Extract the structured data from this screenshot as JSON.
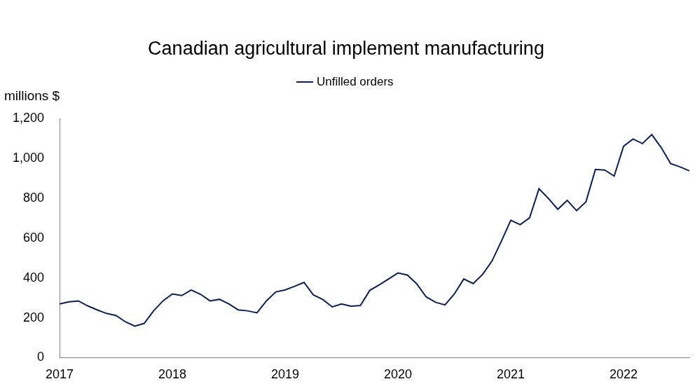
{
  "chart_data": {
    "type": "line",
    "title": "Canadian agricultural implement manufacturing",
    "ylabel": "millions $",
    "categories": [
      "2017",
      null,
      null,
      null,
      null,
      null,
      null,
      null,
      null,
      null,
      null,
      null,
      "2018",
      null,
      null,
      null,
      null,
      null,
      null,
      null,
      null,
      null,
      null,
      null,
      "2019",
      null,
      null,
      null,
      null,
      null,
      null,
      null,
      null,
      null,
      null,
      null,
      "2020",
      null,
      null,
      null,
      null,
      null,
      null,
      null,
      null,
      null,
      null,
      null,
      "2021",
      null,
      null,
      null,
      null,
      null,
      null,
      null,
      null,
      null,
      null,
      null,
      "2022",
      null,
      null,
      null,
      null,
      null,
      null,
      null
    ],
    "series": [
      {
        "name": "Unfilled orders",
        "color": "#0d1f55",
        "values": [
          270,
          280,
          285,
          260,
          240,
          222,
          212,
          180,
          158,
          172,
          235,
          285,
          320,
          312,
          340,
          318,
          285,
          293,
          270,
          240,
          235,
          225,
          285,
          330,
          340,
          358,
          378,
          315,
          292,
          255,
          270,
          258,
          262,
          338,
          365,
          395,
          425,
          415,
          370,
          305,
          278,
          265,
          320,
          395,
          372,
          418,
          485,
          585,
          690,
          668,
          702,
          848,
          800,
          745,
          790,
          738,
          783,
          945,
          942,
          912,
          1062,
          1098,
          1075,
          1120,
          1055,
          975,
          958,
          938
        ]
      }
    ],
    "ylim": [
      0,
      1200
    ],
    "yticks": [
      0,
      200,
      400,
      600,
      800,
      {
        "value": 1000,
        "label": "1,000"
      },
      {
        "value": 1200,
        "label": "1,200"
      }
    ],
    "grid": false,
    "legend": "top"
  }
}
